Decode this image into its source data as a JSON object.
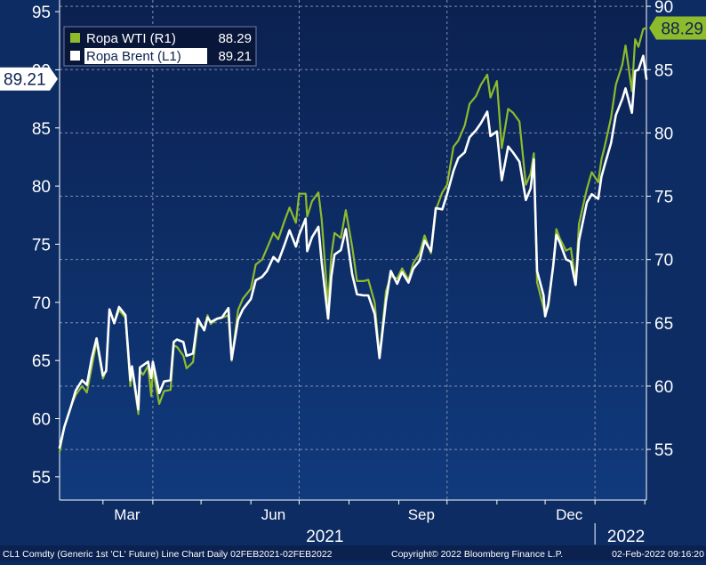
{
  "chart_data": {
    "type": "line",
    "grid": true,
    "legend_position": "top-left",
    "y_left": {
      "ylim": [
        53,
        96
      ],
      "ticks": [
        55,
        60,
        65,
        70,
        75,
        80,
        85,
        90,
        95
      ]
    },
    "y_right": {
      "ylim": [
        51,
        90.5
      ],
      "ticks": [
        55,
        60,
        65,
        70,
        75,
        80,
        85,
        90
      ]
    },
    "x": {
      "start": "2021-02-02",
      "end": "2022-02-02",
      "month_labels": [
        "Mar",
        "Jun",
        "Sep",
        "Dec"
      ],
      "year_labels": [
        "2021",
        "2022"
      ]
    },
    "series": [
      {
        "name": "Ropa WTI (R1)",
        "axis": "right",
        "color": "#8dbb2c",
        "last": "88.29",
        "points": [
          [
            "2021-02-02",
            54.8
          ],
          [
            "2021-02-05",
            56.8
          ],
          [
            "2021-02-09",
            58.4
          ],
          [
            "2021-02-12",
            59.3
          ],
          [
            "2021-02-16",
            60.0
          ],
          [
            "2021-02-19",
            59.5
          ],
          [
            "2021-02-22",
            61.5
          ],
          [
            "2021-02-25",
            63.5
          ],
          [
            "2021-03-01",
            60.6
          ],
          [
            "2021-03-03",
            61.3
          ],
          [
            "2021-03-05",
            66.0
          ],
          [
            "2021-03-08",
            65.0
          ],
          [
            "2021-03-11",
            66.0
          ],
          [
            "2021-03-15",
            65.4
          ],
          [
            "2021-03-18",
            60.0
          ],
          [
            "2021-03-19",
            61.4
          ],
          [
            "2021-03-23",
            57.8
          ],
          [
            "2021-03-24",
            61.2
          ],
          [
            "2021-03-26",
            60.9
          ],
          [
            "2021-03-29",
            61.6
          ],
          [
            "2021-03-31",
            59.2
          ],
          [
            "2021-04-01",
            61.4
          ],
          [
            "2021-04-05",
            58.6
          ],
          [
            "2021-04-08",
            59.6
          ],
          [
            "2021-04-12",
            59.7
          ],
          [
            "2021-04-14",
            63.2
          ],
          [
            "2021-04-16",
            63.1
          ],
          [
            "2021-04-20",
            62.4
          ],
          [
            "2021-04-22",
            61.4
          ],
          [
            "2021-04-26",
            61.9
          ],
          [
            "2021-04-29",
            65.0
          ],
          [
            "2021-05-03",
            64.5
          ],
          [
            "2021-05-05",
            65.6
          ],
          [
            "2021-05-07",
            64.9
          ],
          [
            "2021-05-11",
            65.3
          ],
          [
            "2021-05-14",
            65.4
          ],
          [
            "2021-05-18",
            65.6
          ],
          [
            "2021-05-20",
            62.0
          ],
          [
            "2021-05-24",
            66.0
          ],
          [
            "2021-05-27",
            66.9
          ],
          [
            "2021-06-01",
            67.7
          ],
          [
            "2021-06-04",
            69.6
          ],
          [
            "2021-06-08",
            70.0
          ],
          [
            "2021-06-11",
            70.9
          ],
          [
            "2021-06-15",
            72.1
          ],
          [
            "2021-06-18",
            71.6
          ],
          [
            "2021-06-22",
            73.1
          ],
          [
            "2021-06-25",
            74.1
          ],
          [
            "2021-06-29",
            72.9
          ],
          [
            "2021-07-01",
            75.2
          ],
          [
            "2021-07-05",
            75.2
          ],
          [
            "2021-07-06",
            73.4
          ],
          [
            "2021-07-09",
            74.6
          ],
          [
            "2021-07-13",
            75.3
          ],
          [
            "2021-07-15",
            73.2
          ],
          [
            "2021-07-19",
            66.4
          ],
          [
            "2021-07-21",
            70.3
          ],
          [
            "2021-07-23",
            72.1
          ],
          [
            "2021-07-27",
            71.7
          ],
          [
            "2021-07-30",
            73.9
          ],
          [
            "2021-08-03",
            71.0
          ],
          [
            "2021-08-06",
            68.3
          ],
          [
            "2021-08-10",
            68.3
          ],
          [
            "2021-08-13",
            68.4
          ],
          [
            "2021-08-17",
            66.6
          ],
          [
            "2021-08-20",
            62.3
          ],
          [
            "2021-08-24",
            67.5
          ],
          [
            "2021-08-27",
            68.7
          ],
          [
            "2021-08-31",
            68.5
          ],
          [
            "2021-09-03",
            69.3
          ],
          [
            "2021-09-07",
            68.4
          ],
          [
            "2021-09-10",
            69.7
          ],
          [
            "2021-09-14",
            70.5
          ],
          [
            "2021-09-17",
            71.9
          ],
          [
            "2021-09-21",
            70.5
          ],
          [
            "2021-09-24",
            73.9
          ],
          [
            "2021-09-28",
            75.3
          ],
          [
            "2021-10-01",
            75.9
          ],
          [
            "2021-10-05",
            78.9
          ],
          [
            "2021-10-08",
            79.4
          ],
          [
            "2021-10-12",
            80.6
          ],
          [
            "2021-10-15",
            82.3
          ],
          [
            "2021-10-19",
            82.9
          ],
          [
            "2021-10-22",
            83.8
          ],
          [
            "2021-10-26",
            84.6
          ],
          [
            "2021-10-28",
            82.8
          ],
          [
            "2021-11-01",
            84.1
          ],
          [
            "2021-11-04",
            78.8
          ],
          [
            "2021-11-08",
            81.9
          ],
          [
            "2021-11-11",
            81.6
          ],
          [
            "2021-11-15",
            80.9
          ],
          [
            "2021-11-19",
            75.9
          ],
          [
            "2021-11-22",
            76.8
          ],
          [
            "2021-11-24",
            78.4
          ],
          [
            "2021-11-26",
            68.2
          ],
          [
            "2021-11-30",
            66.2
          ],
          [
            "2021-12-01",
            65.6
          ],
          [
            "2021-12-03",
            66.3
          ],
          [
            "2021-12-06",
            69.5
          ],
          [
            "2021-12-08",
            72.4
          ],
          [
            "2021-12-10",
            71.7
          ],
          [
            "2021-12-14",
            70.7
          ],
          [
            "2021-12-17",
            70.9
          ],
          [
            "2021-12-20",
            68.2
          ],
          [
            "2021-12-22",
            72.8
          ],
          [
            "2021-12-27",
            75.6
          ],
          [
            "2021-12-30",
            76.9
          ],
          [
            "2022-01-03",
            76.1
          ],
          [
            "2022-01-05",
            77.9
          ],
          [
            "2022-01-07",
            78.9
          ],
          [
            "2022-01-11",
            81.2
          ],
          [
            "2022-01-14",
            83.8
          ],
          [
            "2022-01-18",
            85.4
          ],
          [
            "2022-01-20",
            86.9
          ],
          [
            "2022-01-24",
            83.3
          ],
          [
            "2022-01-26",
            87.4
          ],
          [
            "2022-01-28",
            86.8
          ],
          [
            "2022-01-31",
            88.2
          ],
          [
            "2022-02-02",
            88.29
          ]
        ]
      },
      {
        "name": "Ropa Brent (L1)",
        "axis": "left",
        "color": "#ffffff",
        "last": "89.21",
        "points": [
          [
            "2021-02-02",
            57.5
          ],
          [
            "2021-02-05",
            59.3
          ],
          [
            "2021-02-09",
            61.0
          ],
          [
            "2021-02-12",
            62.4
          ],
          [
            "2021-02-16",
            63.3
          ],
          [
            "2021-02-19",
            62.9
          ],
          [
            "2021-02-22",
            65.2
          ],
          [
            "2021-02-25",
            66.9
          ],
          [
            "2021-03-01",
            63.7
          ],
          [
            "2021-03-03",
            64.1
          ],
          [
            "2021-03-05",
            69.4
          ],
          [
            "2021-03-08",
            68.2
          ],
          [
            "2021-03-11",
            69.6
          ],
          [
            "2021-03-15",
            68.9
          ],
          [
            "2021-03-18",
            63.3
          ],
          [
            "2021-03-19",
            64.5
          ],
          [
            "2021-03-23",
            60.8
          ],
          [
            "2021-03-24",
            64.4
          ],
          [
            "2021-03-26",
            64.6
          ],
          [
            "2021-03-29",
            64.9
          ],
          [
            "2021-03-31",
            63.5
          ],
          [
            "2021-04-01",
            64.9
          ],
          [
            "2021-04-05",
            62.2
          ],
          [
            "2021-04-08",
            63.2
          ],
          [
            "2021-04-12",
            63.3
          ],
          [
            "2021-04-14",
            66.6
          ],
          [
            "2021-04-16",
            66.8
          ],
          [
            "2021-04-20",
            66.6
          ],
          [
            "2021-04-22",
            65.4
          ],
          [
            "2021-04-26",
            65.6
          ],
          [
            "2021-04-29",
            68.6
          ],
          [
            "2021-05-03",
            67.6
          ],
          [
            "2021-05-05",
            68.7
          ],
          [
            "2021-05-07",
            68.3
          ],
          [
            "2021-05-11",
            68.6
          ],
          [
            "2021-05-14",
            68.7
          ],
          [
            "2021-05-18",
            69.5
          ],
          [
            "2021-05-20",
            65.1
          ],
          [
            "2021-05-24",
            68.5
          ],
          [
            "2021-05-27",
            69.4
          ],
          [
            "2021-06-01",
            70.3
          ],
          [
            "2021-06-04",
            71.9
          ],
          [
            "2021-06-08",
            72.2
          ],
          [
            "2021-06-11",
            72.7
          ],
          [
            "2021-06-15",
            73.9
          ],
          [
            "2021-06-18",
            73.5
          ],
          [
            "2021-06-22",
            75.0
          ],
          [
            "2021-06-25",
            76.2
          ],
          [
            "2021-06-29",
            74.8
          ],
          [
            "2021-07-01",
            75.8
          ],
          [
            "2021-07-05",
            77.2
          ],
          [
            "2021-07-06",
            74.4
          ],
          [
            "2021-07-09",
            75.6
          ],
          [
            "2021-07-13",
            76.5
          ],
          [
            "2021-07-15",
            73.5
          ],
          [
            "2021-07-19",
            68.6
          ],
          [
            "2021-07-21",
            72.2
          ],
          [
            "2021-07-23",
            74.1
          ],
          [
            "2021-07-27",
            74.5
          ],
          [
            "2021-07-30",
            76.3
          ],
          [
            "2021-08-03",
            72.4
          ],
          [
            "2021-08-06",
            70.7
          ],
          [
            "2021-08-10",
            70.6
          ],
          [
            "2021-08-13",
            70.6
          ],
          [
            "2021-08-17",
            69.0
          ],
          [
            "2021-08-20",
            65.2
          ],
          [
            "2021-08-24",
            70.1
          ],
          [
            "2021-08-27",
            72.7
          ],
          [
            "2021-08-31",
            71.6
          ],
          [
            "2021-09-03",
            72.6
          ],
          [
            "2021-09-07",
            71.7
          ],
          [
            "2021-09-10",
            72.9
          ],
          [
            "2021-09-14",
            73.6
          ],
          [
            "2021-09-17",
            75.3
          ],
          [
            "2021-09-21",
            74.4
          ],
          [
            "2021-09-24",
            78.1
          ],
          [
            "2021-09-28",
            78.0
          ],
          [
            "2021-10-01",
            79.3
          ],
          [
            "2021-10-05",
            81.3
          ],
          [
            "2021-10-08",
            82.4
          ],
          [
            "2021-10-12",
            82.9
          ],
          [
            "2021-10-15",
            84.2
          ],
          [
            "2021-10-19",
            84.8
          ],
          [
            "2021-10-22",
            85.4
          ],
          [
            "2021-10-26",
            86.4
          ],
          [
            "2021-10-28",
            84.3
          ],
          [
            "2021-11-01",
            84.7
          ],
          [
            "2021-11-04",
            80.5
          ],
          [
            "2021-11-08",
            83.4
          ],
          [
            "2021-11-11",
            82.9
          ],
          [
            "2021-11-15",
            82.1
          ],
          [
            "2021-11-19",
            78.8
          ],
          [
            "2021-11-22",
            79.8
          ],
          [
            "2021-11-24",
            82.3
          ],
          [
            "2021-11-26",
            72.7
          ],
          [
            "2021-11-30",
            70.6
          ],
          [
            "2021-12-01",
            68.8
          ],
          [
            "2021-12-03",
            69.9
          ],
          [
            "2021-12-06",
            73.1
          ],
          [
            "2021-12-08",
            75.8
          ],
          [
            "2021-12-10",
            75.2
          ],
          [
            "2021-12-14",
            73.7
          ],
          [
            "2021-12-17",
            73.5
          ],
          [
            "2021-12-20",
            71.5
          ],
          [
            "2021-12-22",
            75.3
          ],
          [
            "2021-12-27",
            78.6
          ],
          [
            "2021-12-30",
            79.3
          ],
          [
            "2022-01-03",
            78.9
          ],
          [
            "2022-01-05",
            80.8
          ],
          [
            "2022-01-07",
            81.8
          ],
          [
            "2022-01-11",
            83.7
          ],
          [
            "2022-01-14",
            86.1
          ],
          [
            "2022-01-18",
            87.5
          ],
          [
            "2022-01-20",
            88.4
          ],
          [
            "2022-01-24",
            86.3
          ],
          [
            "2022-01-26",
            89.9
          ],
          [
            "2022-01-28",
            90.0
          ],
          [
            "2022-01-31",
            91.2
          ],
          [
            "2022-02-02",
            89.21
          ]
        ]
      }
    ]
  },
  "footer": {
    "left": "CL1 Comdty (Generic 1st 'CL' Future) Line Chart  Daily 02FEB2021-02FEB2022",
    "middle": "Copyright© 2022 Bloomberg Finance L.P.",
    "right": "02-Feb-2022 09:16:20"
  }
}
